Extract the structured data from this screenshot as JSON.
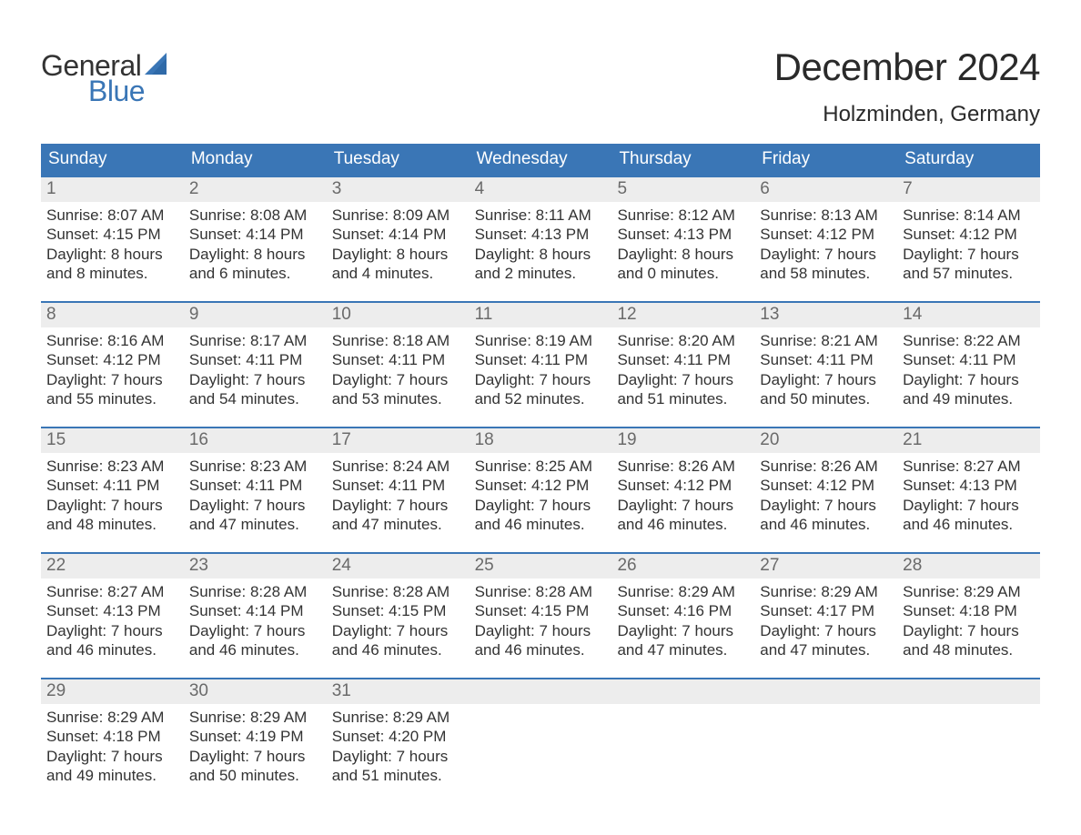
{
  "brand": {
    "word1": "General",
    "word2": "Blue",
    "text_color": "#333333",
    "accent_color": "#3a76b6"
  },
  "title": "December 2024",
  "location": "Holzminden, Germany",
  "colors": {
    "header_bg": "#3a76b6",
    "header_text": "#ffffff",
    "daynum_bg": "#ededed",
    "daynum_text": "#6a6a6a",
    "divider": "#3a76b6",
    "body_text": "#333333",
    "background": "#ffffff"
  },
  "typography": {
    "title_fontsize": 42,
    "location_fontsize": 24,
    "weekday_fontsize": 19,
    "cell_fontsize": 17,
    "logo_fontsize": 32
  },
  "weekdays": [
    "Sunday",
    "Monday",
    "Tuesday",
    "Wednesday",
    "Thursday",
    "Friday",
    "Saturday"
  ],
  "weeks": [
    [
      {
        "day": "1",
        "sunrise": "Sunrise: 8:07 AM",
        "sunset": "Sunset: 4:15 PM",
        "dl1": "Daylight: 8 hours",
        "dl2": "and 8 minutes."
      },
      {
        "day": "2",
        "sunrise": "Sunrise: 8:08 AM",
        "sunset": "Sunset: 4:14 PM",
        "dl1": "Daylight: 8 hours",
        "dl2": "and 6 minutes."
      },
      {
        "day": "3",
        "sunrise": "Sunrise: 8:09 AM",
        "sunset": "Sunset: 4:14 PM",
        "dl1": "Daylight: 8 hours",
        "dl2": "and 4 minutes."
      },
      {
        "day": "4",
        "sunrise": "Sunrise: 8:11 AM",
        "sunset": "Sunset: 4:13 PM",
        "dl1": "Daylight: 8 hours",
        "dl2": "and 2 minutes."
      },
      {
        "day": "5",
        "sunrise": "Sunrise: 8:12 AM",
        "sunset": "Sunset: 4:13 PM",
        "dl1": "Daylight: 8 hours",
        "dl2": "and 0 minutes."
      },
      {
        "day": "6",
        "sunrise": "Sunrise: 8:13 AM",
        "sunset": "Sunset: 4:12 PM",
        "dl1": "Daylight: 7 hours",
        "dl2": "and 58 minutes."
      },
      {
        "day": "7",
        "sunrise": "Sunrise: 8:14 AM",
        "sunset": "Sunset: 4:12 PM",
        "dl1": "Daylight: 7 hours",
        "dl2": "and 57 minutes."
      }
    ],
    [
      {
        "day": "8",
        "sunrise": "Sunrise: 8:16 AM",
        "sunset": "Sunset: 4:12 PM",
        "dl1": "Daylight: 7 hours",
        "dl2": "and 55 minutes."
      },
      {
        "day": "9",
        "sunrise": "Sunrise: 8:17 AM",
        "sunset": "Sunset: 4:11 PM",
        "dl1": "Daylight: 7 hours",
        "dl2": "and 54 minutes."
      },
      {
        "day": "10",
        "sunrise": "Sunrise: 8:18 AM",
        "sunset": "Sunset: 4:11 PM",
        "dl1": "Daylight: 7 hours",
        "dl2": "and 53 minutes."
      },
      {
        "day": "11",
        "sunrise": "Sunrise: 8:19 AM",
        "sunset": "Sunset: 4:11 PM",
        "dl1": "Daylight: 7 hours",
        "dl2": "and 52 minutes."
      },
      {
        "day": "12",
        "sunrise": "Sunrise: 8:20 AM",
        "sunset": "Sunset: 4:11 PM",
        "dl1": "Daylight: 7 hours",
        "dl2": "and 51 minutes."
      },
      {
        "day": "13",
        "sunrise": "Sunrise: 8:21 AM",
        "sunset": "Sunset: 4:11 PM",
        "dl1": "Daylight: 7 hours",
        "dl2": "and 50 minutes."
      },
      {
        "day": "14",
        "sunrise": "Sunrise: 8:22 AM",
        "sunset": "Sunset: 4:11 PM",
        "dl1": "Daylight: 7 hours",
        "dl2": "and 49 minutes."
      }
    ],
    [
      {
        "day": "15",
        "sunrise": "Sunrise: 8:23 AM",
        "sunset": "Sunset: 4:11 PM",
        "dl1": "Daylight: 7 hours",
        "dl2": "and 48 minutes."
      },
      {
        "day": "16",
        "sunrise": "Sunrise: 8:23 AM",
        "sunset": "Sunset: 4:11 PM",
        "dl1": "Daylight: 7 hours",
        "dl2": "and 47 minutes."
      },
      {
        "day": "17",
        "sunrise": "Sunrise: 8:24 AM",
        "sunset": "Sunset: 4:11 PM",
        "dl1": "Daylight: 7 hours",
        "dl2": "and 47 minutes."
      },
      {
        "day": "18",
        "sunrise": "Sunrise: 8:25 AM",
        "sunset": "Sunset: 4:12 PM",
        "dl1": "Daylight: 7 hours",
        "dl2": "and 46 minutes."
      },
      {
        "day": "19",
        "sunrise": "Sunrise: 8:26 AM",
        "sunset": "Sunset: 4:12 PM",
        "dl1": "Daylight: 7 hours",
        "dl2": "and 46 minutes."
      },
      {
        "day": "20",
        "sunrise": "Sunrise: 8:26 AM",
        "sunset": "Sunset: 4:12 PM",
        "dl1": "Daylight: 7 hours",
        "dl2": "and 46 minutes."
      },
      {
        "day": "21",
        "sunrise": "Sunrise: 8:27 AM",
        "sunset": "Sunset: 4:13 PM",
        "dl1": "Daylight: 7 hours",
        "dl2": "and 46 minutes."
      }
    ],
    [
      {
        "day": "22",
        "sunrise": "Sunrise: 8:27 AM",
        "sunset": "Sunset: 4:13 PM",
        "dl1": "Daylight: 7 hours",
        "dl2": "and 46 minutes."
      },
      {
        "day": "23",
        "sunrise": "Sunrise: 8:28 AM",
        "sunset": "Sunset: 4:14 PM",
        "dl1": "Daylight: 7 hours",
        "dl2": "and 46 minutes."
      },
      {
        "day": "24",
        "sunrise": "Sunrise: 8:28 AM",
        "sunset": "Sunset: 4:15 PM",
        "dl1": "Daylight: 7 hours",
        "dl2": "and 46 minutes."
      },
      {
        "day": "25",
        "sunrise": "Sunrise: 8:28 AM",
        "sunset": "Sunset: 4:15 PM",
        "dl1": "Daylight: 7 hours",
        "dl2": "and 46 minutes."
      },
      {
        "day": "26",
        "sunrise": "Sunrise: 8:29 AM",
        "sunset": "Sunset: 4:16 PM",
        "dl1": "Daylight: 7 hours",
        "dl2": "and 47 minutes."
      },
      {
        "day": "27",
        "sunrise": "Sunrise: 8:29 AM",
        "sunset": "Sunset: 4:17 PM",
        "dl1": "Daylight: 7 hours",
        "dl2": "and 47 minutes."
      },
      {
        "day": "28",
        "sunrise": "Sunrise: 8:29 AM",
        "sunset": "Sunset: 4:18 PM",
        "dl1": "Daylight: 7 hours",
        "dl2": "and 48 minutes."
      }
    ],
    [
      {
        "day": "29",
        "sunrise": "Sunrise: 8:29 AM",
        "sunset": "Sunset: 4:18 PM",
        "dl1": "Daylight: 7 hours",
        "dl2": "and 49 minutes."
      },
      {
        "day": "30",
        "sunrise": "Sunrise: 8:29 AM",
        "sunset": "Sunset: 4:19 PM",
        "dl1": "Daylight: 7 hours",
        "dl2": "and 50 minutes."
      },
      {
        "day": "31",
        "sunrise": "Sunrise: 8:29 AM",
        "sunset": "Sunset: 4:20 PM",
        "dl1": "Daylight: 7 hours",
        "dl2": "and 51 minutes."
      },
      {
        "day": "",
        "empty": true
      },
      {
        "day": "",
        "empty": true
      },
      {
        "day": "",
        "empty": true
      },
      {
        "day": "",
        "empty": true
      }
    ]
  ]
}
